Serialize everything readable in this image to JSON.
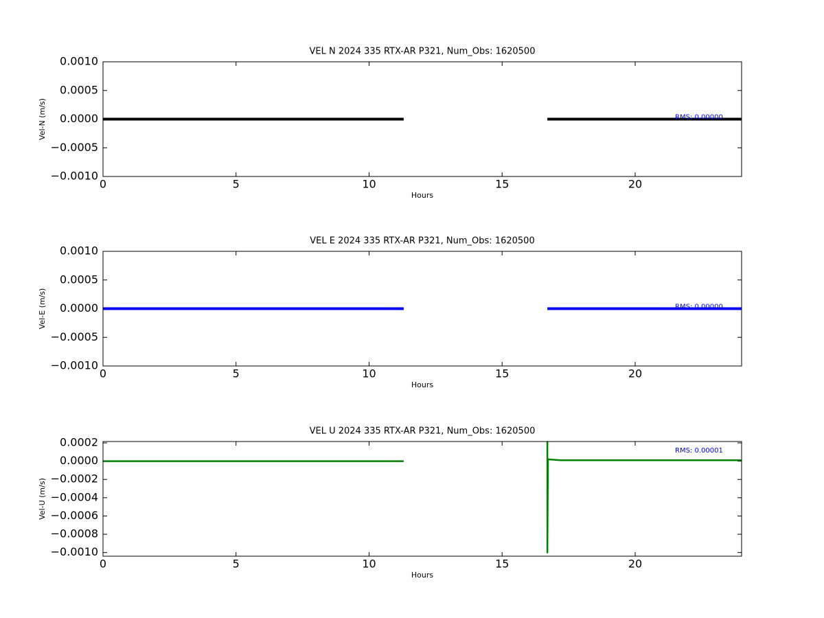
{
  "chart_data": [
    {
      "type": "line",
      "title": "VEL N 2024 335 RTX-AR  P321, Num_Obs: 1620500",
      "x_label": "Hours",
      "y_label": "Vel-N (m/s)",
      "annotation": "RMS:  0.00000",
      "annotation_color": "#0000ff",
      "x": [
        0,
        11.3,
        14,
        16.7,
        24
      ],
      "values": [
        0,
        0,
        null,
        0,
        0
      ],
      "color": "#000000",
      "xlim": [
        0,
        24
      ],
      "xticks": [
        0,
        5,
        10,
        15,
        20
      ],
      "ylim": [
        -0.001,
        0.001
      ],
      "yticks": [
        {
          "value": -0.001,
          "label": "−0.0010"
        },
        {
          "value": -0.0005,
          "label": "−0.0005"
        },
        {
          "value": 0,
          "label": "0.0000"
        },
        {
          "value": 0.0005,
          "label": "0.0005"
        },
        {
          "value": 0.001,
          "label": "0.0010"
        }
      ]
    },
    {
      "type": "line",
      "title": "VEL E 2024 335 RTX-AR  P321, Num_Obs: 1620500",
      "x_label": "Hours",
      "y_label": "Vel-E (m/s)",
      "annotation": "RMS:  0.00000",
      "annotation_color": "#0000ff",
      "x": [
        0,
        11.3,
        14,
        16.7,
        24
      ],
      "values": [
        0,
        0,
        null,
        0,
        0
      ],
      "color": "#0000ff",
      "xlim": [
        0,
        24
      ],
      "xticks": [
        0,
        5,
        10,
        15,
        20
      ],
      "ylim": [
        -0.001,
        0.001
      ],
      "yticks": [
        {
          "value": -0.001,
          "label": "−0.0010"
        },
        {
          "value": -0.0005,
          "label": "−0.0005"
        },
        {
          "value": 0,
          "label": "0.0000"
        },
        {
          "value": 0.0005,
          "label": "0.0005"
        },
        {
          "value": 0.001,
          "label": "0.0010"
        }
      ]
    },
    {
      "type": "line",
      "title": "VEL U 2024 335 RTX-AR  P321, Num_Obs: 1620500",
      "x_label": "Hours",
      "y_label": "Vel-U (m/s)",
      "annotation": "RMS:  0.00001",
      "annotation_color": "#0000ff",
      "x": [
        0,
        11.3,
        14,
        16.7,
        16.7,
        16.72,
        16.75,
        17.2,
        24
      ],
      "values": [
        0,
        0,
        null,
        0.00022,
        -0.001,
        2e-05,
        2e-05,
        1e-05,
        1e-05
      ],
      "color": "#008000",
      "xlim": [
        0,
        24
      ],
      "xticks": [
        0,
        5,
        10,
        15,
        20
      ],
      "ylim": [
        -0.00104,
        0.000215
      ],
      "yticks": [
        {
          "value": -0.001,
          "label": "−0.0010"
        },
        {
          "value": -0.0008,
          "label": "−0.0008"
        },
        {
          "value": -0.0006,
          "label": "−0.0006"
        },
        {
          "value": -0.0004,
          "label": "−0.0004"
        },
        {
          "value": -0.0002,
          "label": "−0.0002"
        },
        {
          "value": 0,
          "label": "0.0000"
        },
        {
          "value": 0.0002,
          "label": "0.0002"
        }
      ]
    }
  ]
}
